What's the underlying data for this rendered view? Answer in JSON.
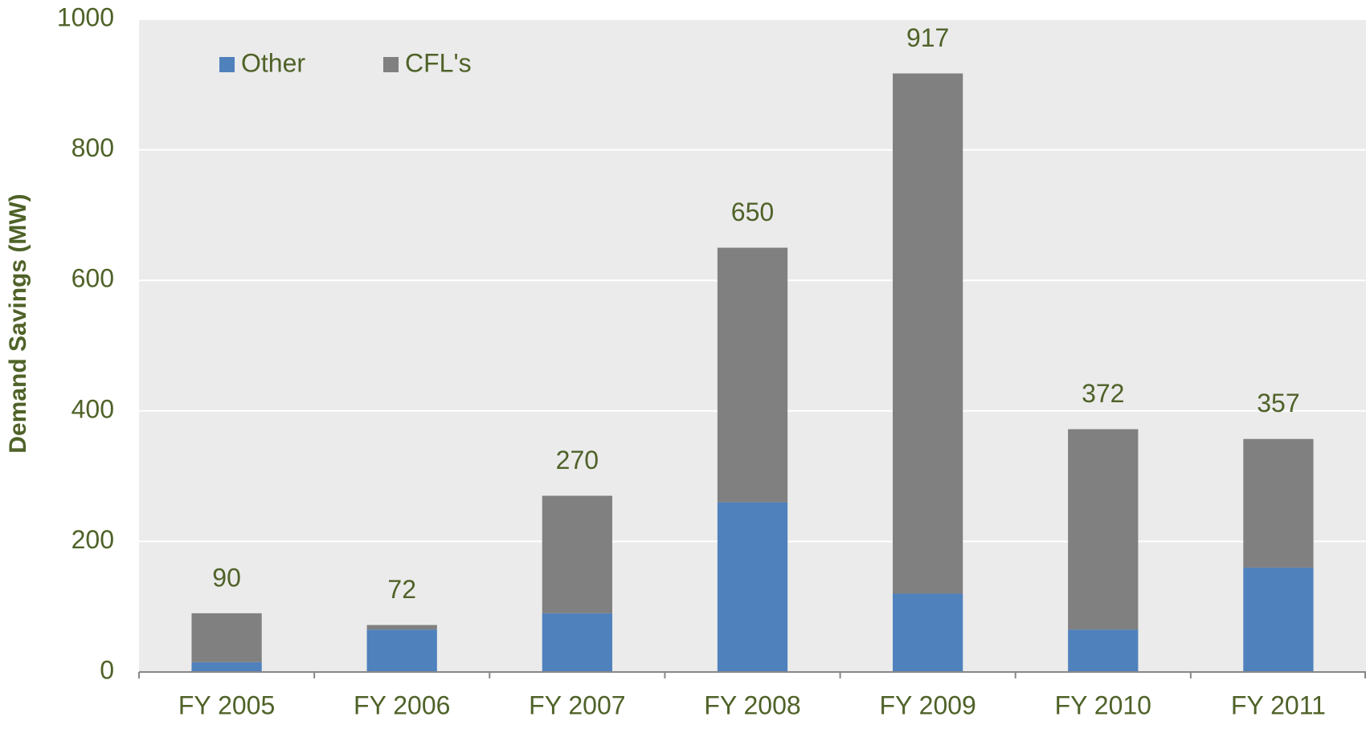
{
  "chart_data": {
    "type": "stacked_bar",
    "y_axis_label": "Demand Savings (MW)",
    "categories": [
      "FY 2005",
      "FY 2006",
      "FY 2007",
      "FY 2008",
      "FY 2009",
      "FY 2010",
      "FY 2011"
    ],
    "series": [
      {
        "name": "Other",
        "color": "#4f81bd",
        "values": [
          15,
          65,
          90,
          260,
          120,
          65,
          160
        ]
      },
      {
        "name": "CFL's",
        "color": "#808080",
        "values": [
          75,
          7,
          180,
          390,
          797,
          307,
          197
        ]
      }
    ],
    "totals": [
      90,
      72,
      270,
      650,
      917,
      372,
      357
    ],
    "ylim": [
      0,
      1000
    ],
    "yticks": [
      0,
      200,
      400,
      600,
      800,
      1000
    ],
    "grid": true
  }
}
